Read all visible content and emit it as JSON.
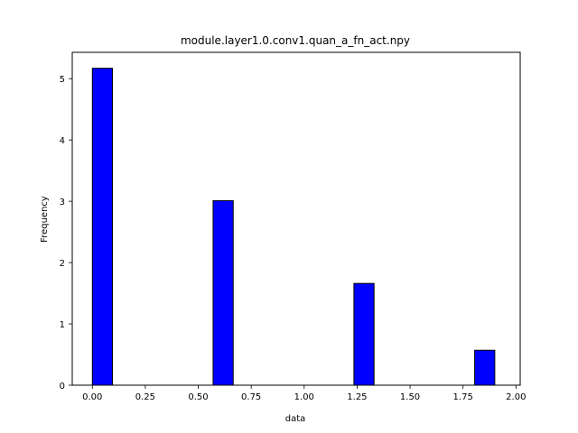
{
  "chart_data": {
    "type": "bar",
    "title": "module.layer1.0.conv1.quan_a_fn_act.npy",
    "xlabel": "data",
    "ylabel": "Frequency",
    "xlim": [
      -0.095,
      2.02
    ],
    "ylim": [
      0,
      5.43
    ],
    "xticks": [
      0.0,
      0.25,
      0.5,
      0.75,
      1.0,
      1.25,
      1.5,
      1.75,
      2.0
    ],
    "xtick_labels": [
      "0.00",
      "0.25",
      "0.50",
      "0.75",
      "1.00",
      "1.25",
      "1.50",
      "1.75",
      "2.00"
    ],
    "yticks": [
      0,
      1,
      2,
      3,
      4,
      5
    ],
    "ytick_labels": [
      "0",
      "1",
      "2",
      "3",
      "4",
      "5"
    ],
    "grid": false,
    "bar_color": "#0000ff",
    "edge_color": "#000000",
    "bars": [
      {
        "x0": 0.0,
        "x1": 0.095,
        "value": 5.17
      },
      {
        "x0": 0.57,
        "x1": 0.665,
        "value": 3.01
      },
      {
        "x0": 1.235,
        "x1": 1.33,
        "value": 1.66
      },
      {
        "x0": 1.805,
        "x1": 1.9,
        "value": 0.57
      }
    ]
  }
}
